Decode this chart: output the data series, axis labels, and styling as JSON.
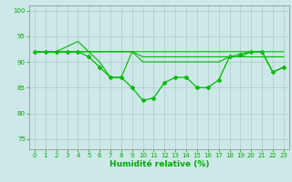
{
  "xlabel": "Humidité relative (%)",
  "background_color": "#cce8e8",
  "grid_color": "#b0c8c8",
  "line_color": "#00bb00",
  "xlim": [
    -0.5,
    23.5
  ],
  "ylim": [
    73,
    101
  ],
  "yticks": [
    75,
    80,
    85,
    90,
    95,
    100
  ],
  "xticks": [
    0,
    1,
    2,
    3,
    4,
    5,
    6,
    7,
    8,
    9,
    10,
    11,
    12,
    13,
    14,
    15,
    16,
    17,
    18,
    19,
    20,
    21,
    22,
    23
  ],
  "series": [
    [
      92,
      92,
      92,
      93,
      94,
      92,
      90,
      87,
      87,
      92,
      92,
      92,
      92,
      92,
      92,
      92,
      92,
      92,
      92,
      92,
      92,
      92,
      92,
      92
    ],
    [
      92,
      92,
      92,
      92,
      92,
      92,
      92,
      92,
      92,
      92,
      91,
      91,
      91,
      91,
      91,
      91,
      91,
      91,
      91,
      91,
      91,
      91,
      91,
      91
    ],
    [
      92,
      92,
      92,
      92,
      92,
      92,
      92,
      92,
      92,
      92,
      90,
      90,
      90,
      90,
      90,
      90,
      90,
      90,
      91,
      91,
      92,
      92,
      88,
      89
    ],
    [
      92,
      92,
      92,
      92,
      92,
      91,
      89,
      87,
      87,
      85,
      82.5,
      83,
      86,
      87,
      87,
      85,
      85,
      86.5,
      91,
      91.5,
      92,
      92,
      88,
      89
    ]
  ],
  "markers": [
    false,
    false,
    false,
    true
  ],
  "tick_color": "#00aa00",
  "xlabel_color": "#00aa00",
  "xlabel_fontsize": 6.5,
  "tick_fontsize": 5.0
}
